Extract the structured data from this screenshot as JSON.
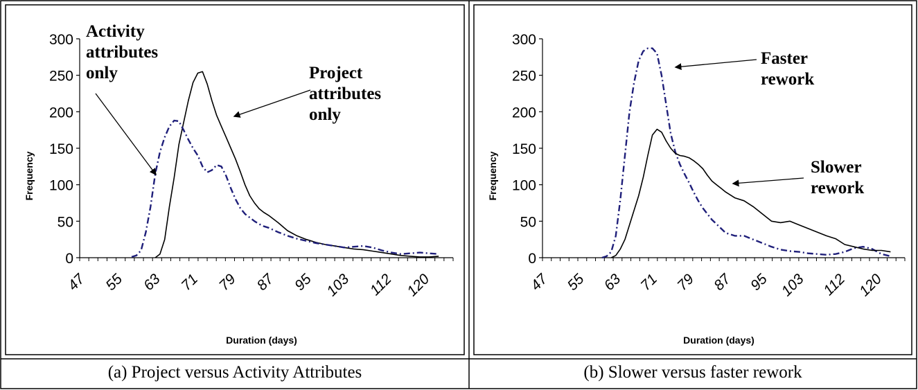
{
  "figure": {
    "captions": [
      "(a) Project versus Activity Attributes",
      "(b) Slower versus faster rework"
    ]
  },
  "chart_data": [
    {
      "type": "line",
      "panel": "a",
      "title": "",
      "xlabel": "Duration (days)",
      "ylabel": "Frequency",
      "x_tick_labels": [
        "47",
        "55",
        "63",
        "71",
        "79",
        "87",
        "95",
        "103",
        "112",
        "120"
      ],
      "y_ticks": [
        0,
        50,
        100,
        150,
        200,
        250,
        300
      ],
      "xlim": [
        47,
        124
      ],
      "ylim": [
        0,
        300
      ],
      "grid": false,
      "annotations": [
        {
          "lines": [
            "Activity",
            "attributes",
            "only"
          ],
          "points_to": "Activity attributes only series"
        },
        {
          "lines": [
            "Project",
            "attributes",
            "only"
          ],
          "points_to": "Project attributes only series"
        }
      ],
      "series": [
        {
          "name": "Project attributes only",
          "style": "solid",
          "color": "#000000",
          "x": [
            63,
            64,
            65,
            66,
            67,
            68,
            69,
            70,
            71,
            72,
            73,
            74,
            75,
            76,
            77,
            78,
            79,
            80,
            81,
            82,
            83,
            84,
            85,
            86,
            87,
            89,
            91,
            93,
            95,
            97,
            99,
            101,
            103,
            105,
            107,
            109,
            111,
            113,
            115,
            117,
            119,
            121,
            123
          ],
          "y": [
            0,
            5,
            25,
            70,
            110,
            155,
            185,
            215,
            240,
            253,
            255,
            238,
            215,
            195,
            180,
            165,
            150,
            135,
            118,
            100,
            85,
            75,
            67,
            62,
            58,
            48,
            37,
            30,
            25,
            21,
            18,
            16,
            14,
            12,
            11,
            9,
            7,
            5,
            3,
            2,
            1,
            1,
            2
          ]
        },
        {
          "name": "Activity attributes only",
          "style": "dash-dot",
          "color": "#1f1f7a",
          "x": [
            58,
            59,
            60,
            61,
            62,
            63,
            64,
            65,
            66,
            67,
            68,
            69,
            70,
            71,
            72,
            73,
            74,
            75,
            76,
            77,
            78,
            79,
            80,
            81,
            82,
            83,
            84,
            85,
            86,
            87,
            89,
            91,
            93,
            95,
            97,
            99,
            101,
            103,
            105,
            107,
            109,
            111,
            113,
            115,
            117,
            119,
            121,
            123
          ],
          "y": [
            1,
            3,
            10,
            35,
            70,
            115,
            145,
            165,
            180,
            188,
            187,
            175,
            162,
            150,
            140,
            125,
            117,
            120,
            127,
            125,
            112,
            95,
            80,
            68,
            60,
            55,
            50,
            46,
            43,
            41,
            35,
            30,
            26,
            23,
            20,
            18,
            16,
            14,
            15,
            16,
            14,
            10,
            7,
            5,
            6,
            7,
            6,
            5
          ]
        }
      ]
    },
    {
      "type": "line",
      "panel": "b",
      "title": "",
      "xlabel": "Duration (days)",
      "ylabel": "Frequency",
      "x_tick_labels": [
        "47",
        "55",
        "63",
        "71",
        "79",
        "87",
        "95",
        "103",
        "112",
        "120"
      ],
      "y_ticks": [
        0,
        50,
        100,
        150,
        200,
        250,
        300
      ],
      "xlim": [
        47,
        124
      ],
      "ylim": [
        0,
        300
      ],
      "grid": false,
      "annotations": [
        {
          "lines": [
            "Faster",
            "rework"
          ],
          "points_to": "Faster rework series"
        },
        {
          "lines": [
            "Slower",
            "rework"
          ],
          "points_to": "Slower rework series"
        }
      ],
      "series": [
        {
          "name": "Faster rework",
          "style": "dash-dot",
          "color": "#1f1f7a",
          "x": [
            60,
            61,
            62,
            63,
            64,
            65,
            66,
            67,
            68,
            69,
            70,
            71,
            72,
            73,
            74,
            75,
            76,
            77,
            78,
            79,
            80,
            81,
            82,
            83,
            84,
            85,
            86,
            87,
            89,
            91,
            93,
            95,
            97,
            99,
            101,
            103,
            105,
            107,
            109,
            111,
            113,
            115,
            117,
            119,
            121,
            123
          ],
          "y": [
            0,
            2,
            8,
            30,
            80,
            140,
            200,
            240,
            270,
            283,
            287,
            287,
            280,
            250,
            210,
            170,
            145,
            128,
            115,
            103,
            90,
            78,
            68,
            60,
            52,
            46,
            40,
            34,
            30,
            30,
            25,
            20,
            15,
            11,
            9,
            8,
            6,
            5,
            4,
            5,
            8,
            13,
            15,
            12,
            5,
            2
          ]
        },
        {
          "name": "Slower rework",
          "style": "solid",
          "color": "#000000",
          "x": [
            62,
            63,
            64,
            65,
            66,
            67,
            68,
            69,
            70,
            71,
            72,
            73,
            74,
            75,
            76,
            77,
            78,
            79,
            80,
            81,
            82,
            83,
            84,
            85,
            86,
            87,
            89,
            91,
            93,
            95,
            97,
            99,
            101,
            103,
            105,
            107,
            109,
            111,
            113,
            115,
            117,
            119,
            121,
            123
          ],
          "y": [
            0,
            3,
            12,
            25,
            45,
            65,
            85,
            110,
            140,
            168,
            176,
            172,
            160,
            150,
            143,
            140,
            139,
            137,
            133,
            128,
            122,
            113,
            105,
            100,
            95,
            90,
            82,
            78,
            70,
            60,
            50,
            48,
            50,
            45,
            40,
            35,
            30,
            26,
            18,
            15,
            12,
            10,
            10,
            8
          ]
        }
      ]
    }
  ]
}
